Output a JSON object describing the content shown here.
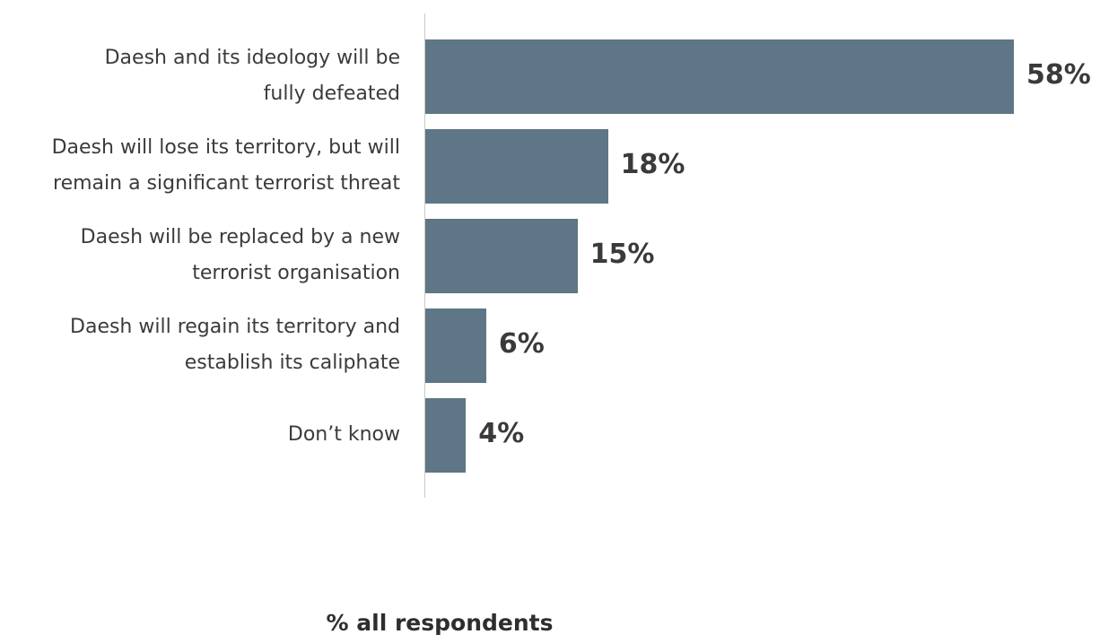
{
  "chart_data": {
    "type": "bar",
    "orientation": "horizontal",
    "categories": [
      "Daesh and its ideology will be\nfully defeated",
      "Daesh will lose its territory, but will\nremain a significant terrorist threat",
      "Daesh will be replaced by a new\nterrorist organisation",
      "Daesh will regain its territory and\nestablish its caliphate",
      "Don’t know"
    ],
    "values": [
      58,
      18,
      15,
      6,
      4
    ],
    "value_labels": [
      "58%",
      "18%",
      "15%",
      "6%",
      "4%"
    ],
    "color": "#5e7686",
    "xlabel": "% all respondents"
  }
}
